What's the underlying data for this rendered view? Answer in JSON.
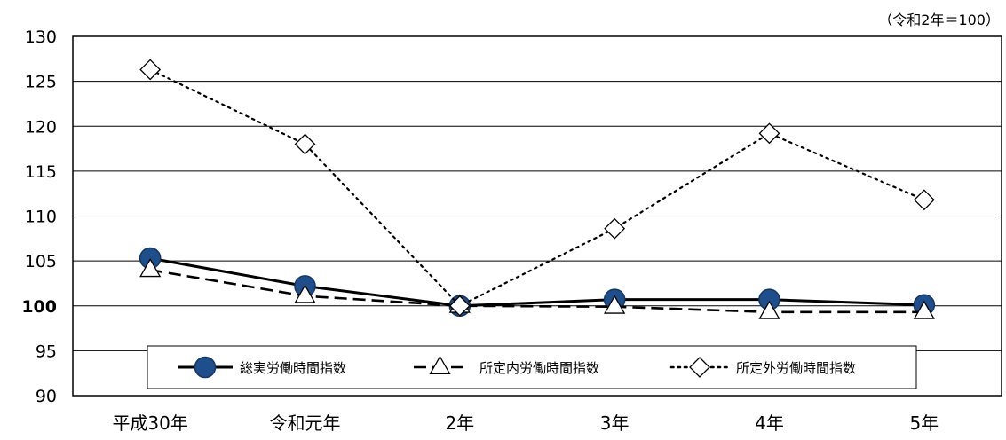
{
  "chart_data": {
    "type": "line",
    "unit_note": "（令和2年＝100）",
    "categories": [
      "平成30年",
      "令和元年",
      "2年",
      "3年",
      "4年",
      "5年"
    ],
    "ylim": [
      90,
      130
    ],
    "yticks": [
      90,
      95,
      100,
      105,
      110,
      115,
      120,
      125,
      130
    ],
    "grid": true,
    "legend_position": "bottom-inside",
    "series": [
      {
        "name": "総実労働時間指数",
        "values": [
          105.3,
          102.2,
          100.0,
          100.7,
          100.7,
          100.1
        ],
        "line_style": "solid",
        "marker": "filled-circle",
        "color": "#000000",
        "marker_color": "#1f4e8c"
      },
      {
        "name": "所定内労働時間指数",
        "values": [
          104.0,
          101.1,
          100.0,
          99.9,
          99.3,
          99.3
        ],
        "line_style": "dashed",
        "marker": "open-triangle",
        "color": "#000000"
      },
      {
        "name": "所定外労働時間指数",
        "values": [
          126.3,
          118.0,
          100.0,
          108.6,
          119.2,
          111.8
        ],
        "line_style": "dotted",
        "marker": "open-diamond",
        "color": "#000000"
      }
    ]
  }
}
